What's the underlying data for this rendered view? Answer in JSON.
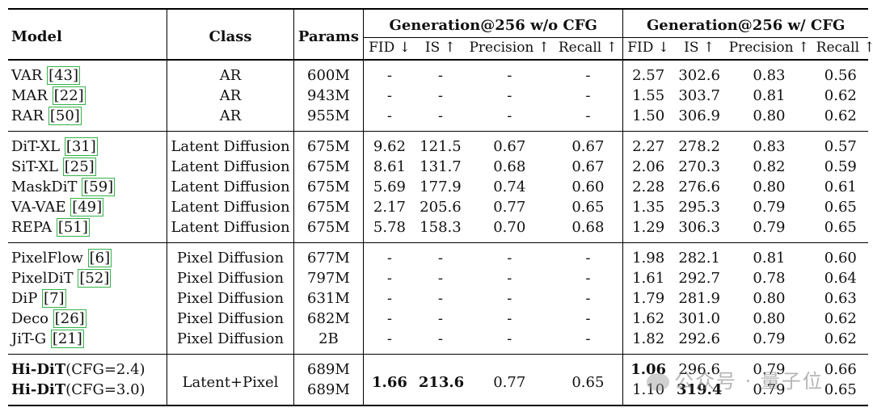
{
  "table": {
    "headers": {
      "model": "Model",
      "class": "Class",
      "params": "Params",
      "group_no_cfg": "Generation@256 w/o CFG",
      "group_cfg": "Generation@256 w/ CFG",
      "fid": "FID ↓",
      "is": "IS ↑",
      "precision": "Precision ↑",
      "recall": "Recall ↑"
    },
    "rows": [
      {
        "model": "VAR",
        "ref": "[43]",
        "class": "AR",
        "params": "600M",
        "no_cfg": [
          "-",
          "-",
          "-",
          "-"
        ],
        "cfg": [
          "2.57",
          "302.6",
          "0.83",
          "0.56"
        ]
      },
      {
        "model": "MAR",
        "ref": "[22]",
        "class": "AR",
        "params": "943M",
        "no_cfg": [
          "-",
          "-",
          "-",
          "-"
        ],
        "cfg": [
          "1.55",
          "303.7",
          "0.81",
          "0.62"
        ]
      },
      {
        "model": "RAR",
        "ref": "[50]",
        "class": "AR",
        "params": "955M",
        "no_cfg": [
          "-",
          "-",
          "-",
          "-"
        ],
        "cfg": [
          "1.50",
          "306.9",
          "0.80",
          "0.62"
        ]
      },
      {
        "model": "DiT-XL",
        "ref": "[31]",
        "class": "Latent Diffusion",
        "params": "675M",
        "no_cfg": [
          "9.62",
          "121.5",
          "0.67",
          "0.67"
        ],
        "cfg": [
          "2.27",
          "278.2",
          "0.83",
          "0.57"
        ]
      },
      {
        "model": "SiT-XL",
        "ref": "[25]",
        "class": "Latent Diffusion",
        "params": "675M",
        "no_cfg": [
          "8.61",
          "131.7",
          "0.68",
          "0.67"
        ],
        "cfg": [
          "2.06",
          "270.3",
          "0.82",
          "0.59"
        ]
      },
      {
        "model": "MaskDiT",
        "ref": "[59]",
        "class": "Latent Diffusion",
        "params": "675M",
        "no_cfg": [
          "5.69",
          "177.9",
          "0.74",
          "0.60"
        ],
        "cfg": [
          "2.28",
          "276.6",
          "0.80",
          "0.61"
        ]
      },
      {
        "model": "VA-VAE",
        "ref": "[49]",
        "class": "Latent Diffusion",
        "params": "675M",
        "no_cfg": [
          "2.17",
          "205.6",
          "0.77",
          "0.65"
        ],
        "cfg": [
          "1.35",
          "295.3",
          "0.79",
          "0.65"
        ]
      },
      {
        "model": "REPA",
        "ref": "[51]",
        "class": "Latent Diffusion",
        "params": "675M",
        "no_cfg": [
          "5.78",
          "158.3",
          "0.70",
          "0.68"
        ],
        "cfg": [
          "1.29",
          "306.3",
          "0.79",
          "0.65"
        ]
      },
      {
        "model": "PixelFlow",
        "ref": "[6]",
        "class": "Pixel Diffusion",
        "params": "677M",
        "no_cfg": [
          "-",
          "-",
          "-",
          "-"
        ],
        "cfg": [
          "1.98",
          "282.1",
          "0.81",
          "0.60"
        ]
      },
      {
        "model": "PixelDiT",
        "ref": "[52]",
        "class": "Pixel Diffusion",
        "params": "797M",
        "no_cfg": [
          "-",
          "-",
          "-",
          "-"
        ],
        "cfg": [
          "1.61",
          "292.7",
          "0.78",
          "0.64"
        ]
      },
      {
        "model": "DiP",
        "ref": "[7]",
        "class": "Pixel Diffusion",
        "params": "631M",
        "no_cfg": [
          "-",
          "-",
          "-",
          "-"
        ],
        "cfg": [
          "1.79",
          "281.9",
          "0.80",
          "0.63"
        ]
      },
      {
        "model": "Deco",
        "ref": "[26]",
        "class": "Pixel Diffusion",
        "params": "682M",
        "no_cfg": [
          "-",
          "-",
          "-",
          "-"
        ],
        "cfg": [
          "1.62",
          "301.0",
          "0.80",
          "0.62"
        ]
      },
      {
        "model": "JiT-G",
        "ref": "[21]",
        "class": "Pixel Diffusion",
        "params": "2B",
        "no_cfg": [
          "-",
          "-",
          "-",
          "-"
        ],
        "cfg": [
          "1.82",
          "292.6",
          "0.79",
          "0.62"
        ]
      }
    ],
    "ours": {
      "class": "Latent+Pixel",
      "no_cfg": [
        "1.66",
        "213.6",
        "0.77",
        "0.65"
      ],
      "rows": [
        {
          "name": "Hi-DiT",
          "setting": "(CFG=2.4)",
          "params": "689M",
          "cfg": [
            "1.06",
            "296.6",
            "0.79",
            "0.66"
          ]
        },
        {
          "name": "Hi-DiT",
          "setting": "(CFG=3.0)",
          "params": "689M",
          "cfg": [
            "1.10",
            "319.4",
            "0.79",
            "0.65"
          ]
        }
      ]
    }
  },
  "watermark": {
    "text": "公众号 · 量子位"
  }
}
